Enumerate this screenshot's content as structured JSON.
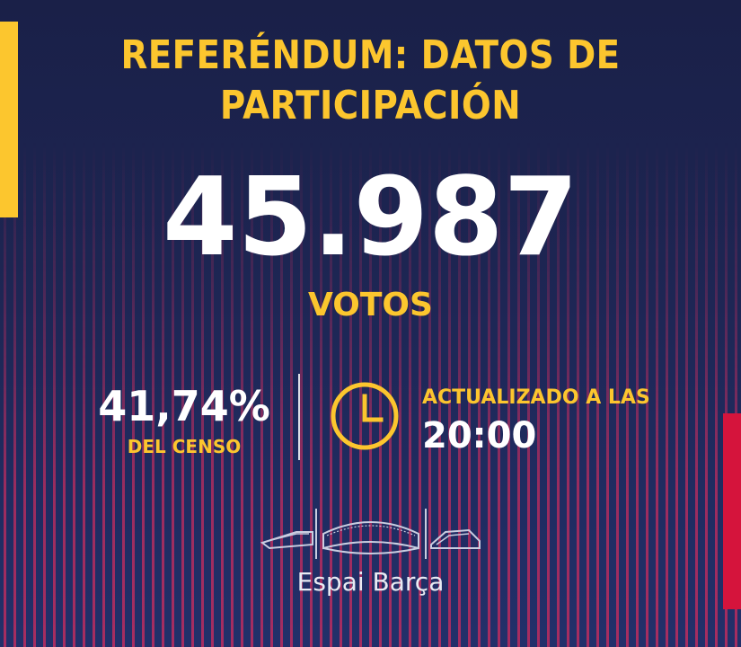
{
  "header": {
    "title_line1": "REFERÉNDUM: DATOS DE",
    "title_line2": "PARTICIPACIÓN"
  },
  "votes": {
    "count": "45.987",
    "label": "VOTOS"
  },
  "census": {
    "percent": "41,74%",
    "label": "DEL CENSO"
  },
  "update": {
    "label": "ACTUALIZADO A LAS",
    "time": "20:00"
  },
  "brand": {
    "name": "Espai Barça",
    "logo_icon": "stadium-icon",
    "clock_icon": "clock-icon"
  },
  "colors": {
    "background": "#1c2350",
    "accent_yellow": "#fcc62e",
    "accent_red": "#d5143c",
    "stripe": "#be2d5f",
    "text_white": "#ffffff"
  }
}
